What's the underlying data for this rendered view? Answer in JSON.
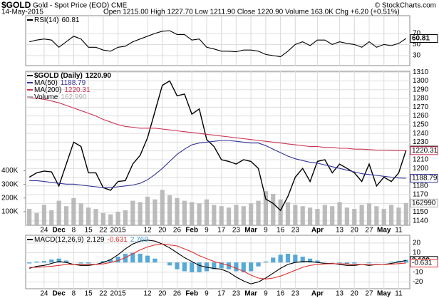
{
  "header": {
    "symbol": "$GOLD",
    "name": "Gold - Spot Price (EOD) CME",
    "date": "14-May-2015",
    "quote": "Open 1215.00 High 1227.70 Low 1211.90 Close 1220.90 Volume 163.0K Chg +6.20 (+0.51%)",
    "credit": "© StockCharts.com"
  },
  "chart_data": [
    {
      "type": "line",
      "grid": true,
      "legend": "upper left",
      "ylim": [
        12,
        102
      ],
      "yticks": [
        30,
        50,
        70
      ],
      "series": [
        {
          "name": "RSI(14)",
          "color": "#000000",
          "values": [
            55,
            58,
            60,
            58,
            45,
            55,
            65,
            60,
            45,
            45,
            40,
            38,
            45,
            47,
            55,
            60,
            65,
            70,
            74,
            75,
            68,
            68,
            58,
            60,
            45,
            42,
            38,
            38,
            37,
            40,
            40,
            38,
            32,
            30,
            28,
            38,
            50,
            55,
            48,
            58,
            58,
            50,
            55,
            52,
            50,
            45,
            55,
            45,
            50,
            48,
            52,
            60.81
          ]
        }
      ]
    },
    {
      "type": "line",
      "grid": true,
      "legend": "upper left",
      "categories": [
        null,
        null,
        "24",
        null,
        "Dec",
        null,
        "8",
        null,
        "15",
        null,
        "22",
        null,
        "2015",
        null,
        null,
        null,
        "12",
        null,
        "20",
        null,
        "26",
        null,
        "Feb",
        null,
        "9",
        null,
        "17",
        null,
        "23",
        null,
        "Mar",
        null,
        "9",
        null,
        "16",
        null,
        "23",
        null,
        null,
        "Apr",
        null,
        null,
        "13",
        null,
        "20",
        null,
        "27",
        null,
        "May",
        null,
        "11",
        null
      ],
      "ylim": [
        1135,
        1311
      ],
      "yticks": [
        1140,
        1150,
        1160,
        1170,
        1180,
        1190,
        1200,
        1210,
        1220,
        1230,
        1240,
        1250,
        1260,
        1270,
        1280,
        1290,
        1300,
        1310
      ],
      "y2lim": [
        0,
        1130000
      ],
      "y2ticks": [
        {
          "value": 100000,
          "label": "100K"
        },
        {
          "value": 200000,
          "label": "200K"
        },
        {
          "value": 300000,
          "label": "300K"
        },
        {
          "value": 400000,
          "label": "400K"
        }
      ],
      "series": [
        {
          "name": "$GOLD (Daily)",
          "color": "#000000",
          "values": [
            1190,
            1195,
            1197,
            1196,
            1180,
            1205,
            1230,
            1225,
            1195,
            1195,
            1178,
            1175,
            1185,
            1186,
            1205,
            1215,
            1235,
            1265,
            1295,
            1300,
            1283,
            1285,
            1262,
            1268,
            1233,
            1225,
            1210,
            1208,
            1205,
            1210,
            1208,
            1200,
            1165,
            1160,
            1152,
            1168,
            1190,
            1200,
            1185,
            1208,
            1210,
            1195,
            1205,
            1200,
            1195,
            1185,
            1205,
            1180,
            1190,
            1185,
            1195,
            1220.9
          ],
          "value_labels": [
            null,
            null,
            null,
            null,
            null,
            null,
            null,
            null,
            null,
            null,
            null,
            null,
            null,
            null,
            null,
            null,
            null,
            null,
            null,
            null,
            null,
            null,
            null,
            null,
            null,
            null,
            null,
            null,
            null,
            null,
            null,
            null,
            null,
            null,
            null,
            null,
            null,
            null,
            null,
            null,
            null,
            null,
            null,
            null,
            null,
            null,
            null,
            null,
            null,
            null,
            null,
            "1220.90"
          ]
        },
        {
          "name": "MA(50)",
          "color": "#333399",
          "values": [
            1186,
            1186,
            1185,
            1184,
            1183,
            1182,
            1182,
            1181,
            1180,
            1179,
            1178,
            1178,
            1179,
            1180,
            1181,
            1183,
            1187,
            1193,
            1200,
            1208,
            1216,
            1222,
            1227,
            1229,
            1230,
            1231,
            1232,
            1232,
            1231,
            1230,
            1229,
            1229,
            1226,
            1222,
            1218,
            1214,
            1211,
            1209,
            1207,
            1206,
            1204,
            1202,
            1200,
            1198,
            1196,
            1194,
            1193,
            1192,
            1191,
            1190,
            1189,
            1188.79
          ]
        },
        {
          "name": "MA(200)",
          "color": "#cc3355",
          "values": [
            1281,
            1280,
            1279,
            1277,
            1275,
            1272,
            1269,
            1266,
            1263,
            1260,
            1256,
            1253,
            1250,
            1248,
            1247,
            1246,
            1246,
            1246,
            1245,
            1244,
            1243,
            1242,
            1241,
            1240,
            1239,
            1238,
            1237,
            1236,
            1235,
            1234,
            1233,
            1232,
            1231,
            1230,
            1229,
            1228,
            1227,
            1226,
            1225,
            1225,
            1224,
            1224,
            1223,
            1223,
            1222,
            1222,
            1221.5,
            1221,
            1221,
            1220.8,
            1220.5,
            1220.31
          ]
        },
        {
          "name": "Volume",
          "color": "#b0b0b0",
          "type": "bar",
          "axis": "y2",
          "values": [
            120000,
            90000,
            150000,
            110000,
            180000,
            140000,
            200000,
            160000,
            130000,
            120000,
            90000,
            80000,
            100000,
            110000,
            180000,
            170000,
            210000,
            190000,
            260000,
            220000,
            200000,
            180000,
            170000,
            160000,
            190000,
            150000,
            140000,
            130000,
            150000,
            140000,
            160000,
            180000,
            250000,
            230000,
            190000,
            170000,
            150000,
            140000,
            130000,
            120000,
            150000,
            140000,
            170000,
            130000,
            120000,
            150000,
            160000,
            140000,
            120000,
            150000,
            130000,
            162990
          ],
          "value_labels": [
            null,
            null,
            null,
            null,
            null,
            null,
            null,
            null,
            null,
            null,
            null,
            null,
            null,
            null,
            null,
            null,
            null,
            null,
            null,
            null,
            null,
            null,
            null,
            null,
            null,
            null,
            null,
            null,
            null,
            null,
            null,
            null,
            null,
            null,
            null,
            null,
            null,
            null,
            null,
            null,
            null,
            null,
            null,
            null,
            null,
            null,
            null,
            null,
            null,
            null,
            null,
            "162,990"
          ]
        }
      ]
    },
    {
      "type": "line",
      "grid": true,
      "legend": "upper left",
      "categories": [
        null,
        null,
        "24",
        null,
        "Dec",
        null,
        "8",
        null,
        "15",
        null,
        "22",
        null,
        "2015",
        null,
        null,
        null,
        "12",
        null,
        "20",
        null,
        "26",
        null,
        "Feb",
        null,
        "9",
        null,
        "17",
        null,
        "23",
        null,
        "Mar",
        null,
        "9",
        null,
        "16",
        null,
        "23",
        null,
        null,
        "Apr",
        null,
        null,
        "13",
        null,
        "20",
        null,
        "27",
        null,
        "May",
        null,
        "11",
        null
      ],
      "ylim": [
        -27,
        28
      ],
      "yticks": [
        -20,
        -10,
        0,
        10,
        20
      ],
      "series": [
        {
          "name": "MACD(12,26,9)",
          "color": "#000000",
          "values": [
            -6,
            -4,
            -3,
            -1,
            1,
            0,
            -2,
            -3,
            -3,
            -2,
            0,
            3,
            8,
            14,
            19,
            22,
            23,
            22,
            19,
            15,
            10,
            5,
            1,
            -3,
            -5,
            -6,
            -7,
            -10,
            -15,
            -19,
            -22,
            -20,
            -16,
            -11,
            -6,
            -2,
            0,
            1,
            1,
            0,
            -1,
            -1,
            -2,
            -3,
            -3,
            -2,
            -3,
            -2,
            -2,
            -1,
            0.5,
            2.129
          ]
        },
        {
          "color": "#e03030",
          "values": [
            -5,
            -5,
            -4.5,
            -4,
            -3,
            -2,
            -2,
            -2,
            -2,
            -2,
            -1.5,
            0,
            2,
            5,
            9,
            13,
            16,
            18,
            19,
            18,
            17,
            14,
            11,
            7,
            4,
            1,
            -1,
            -3,
            -6,
            -9,
            -13,
            -16,
            -17,
            -16,
            -14,
            -11,
            -8,
            -5,
            -3,
            -2,
            -1.5,
            -1.2,
            -1.3,
            -1.5,
            -2,
            -2,
            -2.2,
            -2.2,
            -2.1,
            -1.8,
            -1.2,
            -0.631
          ]
        },
        {
          "color": "#3a9ad0",
          "type": "bar",
          "values": [
            -1,
            1,
            1.5,
            3,
            4,
            2,
            0,
            -1,
            -1,
            0,
            1.5,
            3,
            6,
            9,
            10,
            9,
            7,
            4,
            0,
            -3,
            -7,
            -9,
            -10,
            -10,
            -9,
            -7,
            -6,
            -7,
            -9,
            -10,
            -9,
            -4,
            1,
            5,
            8,
            9,
            8,
            6,
            4,
            2,
            0.5,
            0.2,
            -0.7,
            -1.5,
            -1,
            0,
            -0.8,
            0.2,
            0.1,
            0.8,
            1.7,
            2.76
          ],
          "value_labels": [
            null,
            null,
            null,
            null,
            null,
            null,
            null,
            null,
            null,
            null,
            null,
            null,
            null,
            null,
            null,
            null,
            null,
            null,
            null,
            null,
            null,
            null,
            null,
            null,
            null,
            null,
            null,
            null,
            null,
            null,
            null,
            null,
            null,
            null,
            null,
            null,
            null,
            null,
            null,
            null,
            null,
            null,
            null,
            null,
            null,
            null,
            null,
            null,
            null,
            null,
            null,
            "2.760"
          ]
        }
      ]
    }
  ]
}
